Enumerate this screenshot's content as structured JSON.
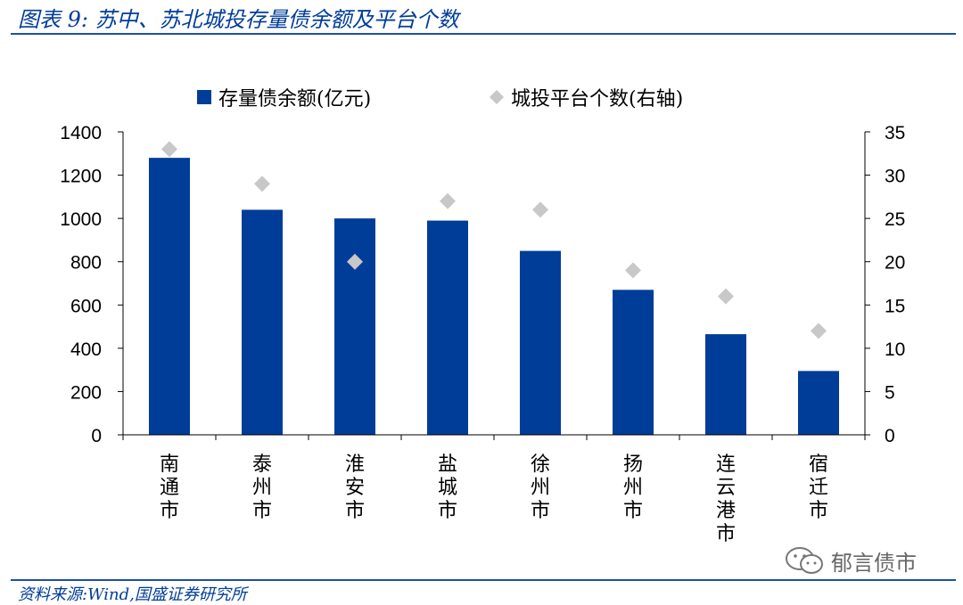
{
  "header": {
    "title": "图表 9:  苏中、苏北城投存量债余额及平台个数"
  },
  "footer": {
    "source": "资料来源:Wind,国盛证券研究所",
    "watermark_text": "郁言债市"
  },
  "colors": {
    "bar": "#003d99",
    "marker": "#c8c8c8",
    "rule": "#1f4ea8",
    "title": "#003d99"
  },
  "chart_data": {
    "type": "bar",
    "categories": [
      "南通市",
      "泰州市",
      "淮安市",
      "盐城市",
      "徐州市",
      "扬州市",
      "连云港市",
      "宿迁市"
    ],
    "series": [
      {
        "name": "存量债余额(亿元)",
        "type": "bar",
        "axis": "left",
        "values": [
          1280,
          1040,
          1000,
          990,
          850,
          670,
          465,
          295
        ]
      },
      {
        "name": "城投平台个数(右轴)",
        "type": "scatter",
        "marker": "diamond",
        "axis": "right",
        "values": [
          33,
          29,
          20,
          27,
          26,
          19,
          16,
          12
        ]
      }
    ],
    "ylim": [
      0,
      1400
    ],
    "yticks": [
      0,
      200,
      400,
      600,
      800,
      1000,
      1200,
      1400
    ],
    "y2lim": [
      0,
      35
    ],
    "y2ticks": [
      0,
      5,
      10,
      15,
      20,
      25,
      30,
      35
    ],
    "legend": "top",
    "grid": false
  }
}
